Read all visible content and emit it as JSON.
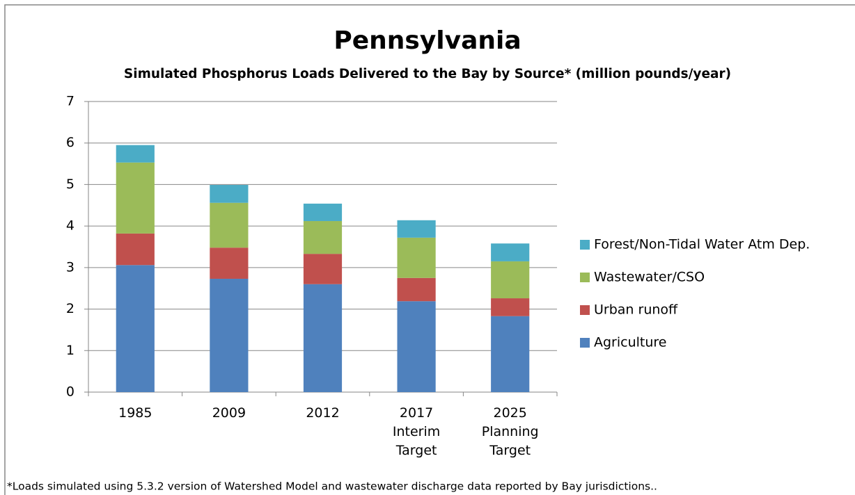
{
  "chart_data": {
    "type": "stacked_bar",
    "title": "Pennsylvania",
    "subtitle": "Simulated Phosphorus Loads Delivered to the Bay by Source* (million pounds/year)",
    "categories": [
      "1985",
      "2009",
      "2012",
      "2017\nInterim\nTarget",
      "2025\nPlanning\nTarget"
    ],
    "series": [
      {
        "name": "Agriculture",
        "color": "#4f81bd",
        "values": [
          3.06,
          2.73,
          2.6,
          2.19,
          1.83
        ]
      },
      {
        "name": "Urban runoff",
        "color": "#c0504d",
        "values": [
          0.76,
          0.75,
          0.73,
          0.56,
          0.43
        ]
      },
      {
        "name": "Wastewater/CSO",
        "color": "#9bbb59",
        "values": [
          1.71,
          1.08,
          0.79,
          0.97,
          0.89
        ]
      },
      {
        "name": "Forest/Non-Tidal Water Atm Dep.",
        "color": "#4bacc6",
        "values": [
          0.42,
          0.43,
          0.42,
          0.42,
          0.43
        ]
      }
    ],
    "ylim": [
      0,
      7
    ],
    "yticks": [
      0,
      1,
      2,
      3,
      4,
      5,
      6,
      7
    ],
    "grid": true,
    "legend": "right",
    "note": "*Loads simulated using 5.3.2 version of Watershed Model and wastewater discharge data reported by Bay jurisdictions.."
  }
}
